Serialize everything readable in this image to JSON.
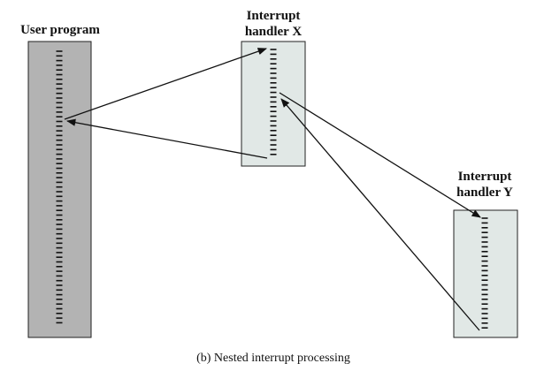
{
  "caption": "(b) Nested interrupt processing",
  "blocks": [
    {
      "id": "user-program",
      "title_lines": [
        "User program"
      ],
      "fill": "#b3b3b3"
    },
    {
      "id": "handler-x",
      "title_lines": [
        "Interrupt",
        "handler X"
      ],
      "fill": "#e1e8e6"
    },
    {
      "id": "handler-y",
      "title_lines": [
        "Interrupt",
        "handler Y"
      ],
      "fill": "#e1e8e6"
    }
  ],
  "colors": {
    "text": "#111111",
    "outline": "#222222",
    "user_program_fill": "#b3b3b3",
    "handler_fill": "#e1e8e6"
  }
}
